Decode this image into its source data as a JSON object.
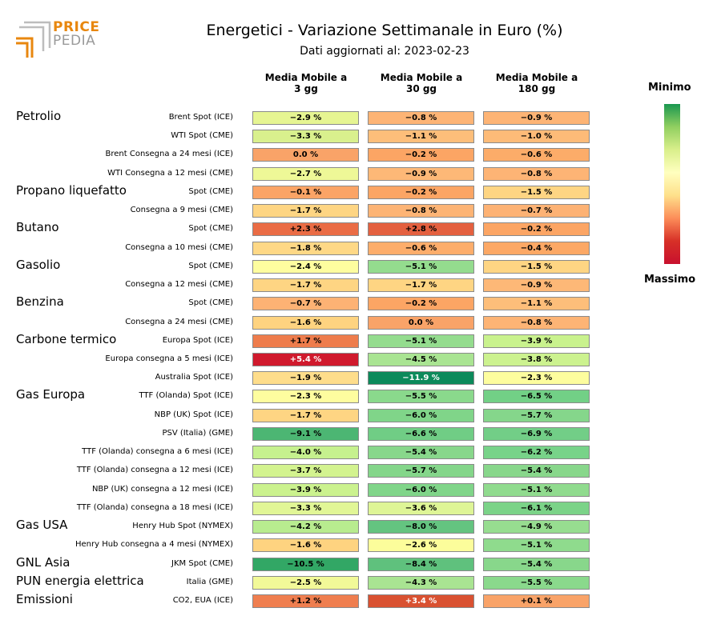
{
  "logo": {
    "line1": "PRICE",
    "line2": "PEDIA"
  },
  "title": "Energetici - Variazione Settimanale in Euro (%)",
  "subtitle": "Dati aggiornati al: 2023-02-23",
  "legend": {
    "top": "Minimo",
    "bottom": "Massimo"
  },
  "columns": [
    "Media Mobile a\n3 gg",
    "Media Mobile a\n30 gg",
    "Media Mobile a\n180 gg"
  ],
  "chart_data": {
    "type": "heatmap",
    "title": "Energetici - Variazione Settimanale in Euro (%)",
    "columns": [
      "Media Mobile a 3 gg",
      "Media Mobile a 30 gg",
      "Media Mobile a 180 gg"
    ],
    "colorscale": {
      "min_label": "Minimo",
      "max_label": "Massimo",
      "min_color": "#1a9850",
      "max_color": "#c8102e"
    },
    "rows": [
      {
        "group": "Petrolio",
        "label": "Brent Spot (ICE)",
        "values": [
          -2.9,
          -0.8,
          -0.9
        ]
      },
      {
        "group": "",
        "label": "WTI Spot (CME)",
        "values": [
          -3.3,
          -1.1,
          -1.0
        ]
      },
      {
        "group": "",
        "label": "Brent Consegna a 24 mesi (ICE)",
        "values": [
          0.0,
          -0.2,
          -0.6
        ]
      },
      {
        "group": "",
        "label": "WTI Consegna a 12 mesi (CME)",
        "values": [
          -2.7,
          -0.9,
          -0.8
        ]
      },
      {
        "group": "Propano liquefatto",
        "label": "Spot (CME)",
        "values": [
          -0.1,
          -0.2,
          -1.5
        ]
      },
      {
        "group": "",
        "label": "Consegna a 9 mesi (CME)",
        "values": [
          -1.7,
          -0.8,
          -0.7
        ]
      },
      {
        "group": "Butano",
        "label": "Spot (CME)",
        "values": [
          2.3,
          2.8,
          -0.2
        ]
      },
      {
        "group": "",
        "label": "Consegna a 10 mesi (CME)",
        "values": [
          -1.8,
          -0.6,
          -0.4
        ]
      },
      {
        "group": "Gasolio",
        "label": "Spot (CME)",
        "values": [
          -2.4,
          -5.1,
          -1.5
        ]
      },
      {
        "group": "",
        "label": "Consegna a 12 mesi (CME)",
        "values": [
          -1.7,
          -1.7,
          -0.9
        ]
      },
      {
        "group": "Benzina",
        "label": "Spot (CME)",
        "values": [
          -0.7,
          -0.2,
          -1.1
        ]
      },
      {
        "group": "",
        "label": "Consegna a 24 mesi (CME)",
        "values": [
          -1.6,
          0.0,
          -0.8
        ]
      },
      {
        "group": "Carbone termico",
        "label": "Europa Spot (ICE)",
        "values": [
          1.7,
          -5.1,
          -3.9
        ]
      },
      {
        "group": "",
        "label": "Europa consegna a 5 mesi (ICE)",
        "values": [
          5.4,
          -4.5,
          -3.8
        ]
      },
      {
        "group": "",
        "label": "Australia Spot (ICE)",
        "values": [
          -1.9,
          -11.9,
          -2.3
        ]
      },
      {
        "group": "Gas Europa",
        "label": "TTF (Olanda) Spot (ICE)",
        "values": [
          -2.3,
          -5.5,
          -6.5
        ]
      },
      {
        "group": "",
        "label": "NBP (UK) Spot (ICE)",
        "values": [
          -1.7,
          -6.0,
          -5.7
        ]
      },
      {
        "group": "",
        "label": "PSV (Italia) (GME)",
        "values": [
          -9.1,
          -6.6,
          -6.9
        ]
      },
      {
        "group": "",
        "label": "TTF (Olanda) consegna a 6 mesi (ICE)",
        "values": [
          -4.0,
          -5.4,
          -6.2
        ]
      },
      {
        "group": "",
        "label": "TTF (Olanda) consegna a 12 mesi (ICE)",
        "values": [
          -3.7,
          -5.7,
          -5.4
        ]
      },
      {
        "group": "",
        "label": "NBP (UK) consegna a 12 mesi (ICE)",
        "values": [
          -3.9,
          -6.0,
          -5.1
        ]
      },
      {
        "group": "",
        "label": "TTF (Olanda) consegna a 18 mesi (ICE)",
        "values": [
          -3.3,
          -3.6,
          -6.1
        ]
      },
      {
        "group": "Gas USA",
        "label": "Henry Hub Spot (NYMEX)",
        "values": [
          -4.2,
          -8.0,
          -4.9
        ]
      },
      {
        "group": "",
        "label": "Henry Hub consegna a 4 mesi (NYMEX)",
        "values": [
          -1.6,
          -2.6,
          -5.1
        ]
      },
      {
        "group": "GNL Asia",
        "label": "JKM Spot (CME)",
        "values": [
          -10.5,
          -8.4,
          -5.4
        ]
      },
      {
        "group": "PUN energia elettrica",
        "label": "Italia (GME)",
        "values": [
          -2.5,
          -4.3,
          -5.5
        ]
      },
      {
        "group": "Emissioni",
        "label": "CO2, EUA (ICE)",
        "values": [
          1.2,
          3.4,
          0.1
        ]
      }
    ],
    "cell_colors": [
      [
        "#e6f592",
        "#fdb475",
        "#fdb475"
      ],
      [
        "#d9f08d",
        "#fdbe7a",
        "#fdbb78"
      ],
      [
        "#f9a368",
        "#fca564",
        "#fcac69"
      ],
      [
        "#eef897",
        "#fdb877",
        "#fdb475"
      ],
      [
        "#fba466",
        "#fca564",
        "#fed583"
      ],
      [
        "#fed583",
        "#fdb475",
        "#fdb274"
      ],
      [
        "#ea6c45",
        "#e4603f",
        "#fca564"
      ],
      [
        "#fed886",
        "#fdad6b",
        "#fca865"
      ],
      [
        "#fefd9f",
        "#94dc8e",
        "#fed583"
      ],
      [
        "#fed583",
        "#fed583",
        "#fdb877"
      ],
      [
        "#fdb274",
        "#fca564",
        "#fdbe7a"
      ],
      [
        "#fed380",
        "#f9a368",
        "#fdb475"
      ],
      [
        "#ee7c4c",
        "#94dc8e",
        "#c9f28d"
      ],
      [
        "#d01a2d",
        "#a9e492",
        "#ccf28f"
      ],
      [
        "#fedd8b",
        "#0c8a5b",
        "#fdfd9e"
      ],
      [
        "#fefd9f",
        "#8ad98c",
        "#72d086"
      ],
      [
        "#fed583",
        "#80d589",
        "#85d68b"
      ],
      [
        "#4cb673",
        "#70cd85",
        "#72ce87"
      ],
      [
        "#c6f18e",
        "#88d78b",
        "#78d389"
      ],
      [
        "#d3f38f",
        "#84d68a",
        "#88d78b"
      ],
      [
        "#cbf28e",
        "#80d589",
        "#90db8e"
      ],
      [
        "#e1f696",
        "#def596",
        "#7bd388"
      ],
      [
        "#b8ec8f",
        "#64c480",
        "#97dd90"
      ],
      [
        "#fed380",
        "#fcfd9b",
        "#8fdb8d"
      ],
      [
        "#32a765",
        "#5fc17d",
        "#88d78b"
      ],
      [
        "#f2f998",
        "#a9e492",
        "#8ad98c"
      ],
      [
        "#ef7e4f",
        "#d95131",
        "#f9a368"
      ]
    ]
  }
}
